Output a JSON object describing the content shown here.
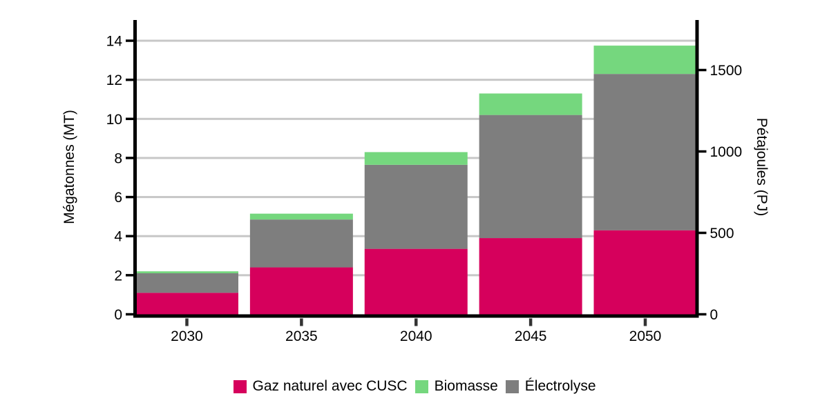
{
  "chart_data": {
    "type": "bar",
    "stacked": true,
    "title": "",
    "categories": [
      "2030",
      "2035",
      "2040",
      "2045",
      "2050"
    ],
    "series": [
      {
        "name": "Gaz naturel avec CUSC",
        "color": "#D6005C",
        "values": [
          1.1,
          2.4,
          3.35,
          3.9,
          4.3
        ]
      },
      {
        "name": "Biomasse",
        "color": "#75D77E",
        "values": [
          0.1,
          0.3,
          0.65,
          1.1,
          1.45
        ]
      },
      {
        "name": "Électrolyse",
        "color": "#7E7E7E",
        "values": [
          1.0,
          2.45,
          4.3,
          6.3,
          8.0
        ]
      }
    ],
    "stack_order_bottom_to_top": [
      "Gaz naturel avec CUSC",
      "Électrolyse",
      "Biomasse"
    ],
    "totals_mt": [
      2.2,
      5.15,
      8.3,
      11.3,
      13.75
    ],
    "y_left": {
      "label": "Mégatonnes (MT)",
      "ticks": [
        0,
        2,
        4,
        6,
        8,
        10,
        12,
        14
      ],
      "range": [
        0,
        15.06
      ]
    },
    "y_right": {
      "label": "Pétajoules (PJ)",
      "ticks": [
        0,
        500,
        1000,
        1500
      ],
      "range": [
        0,
        1807
      ],
      "pj_per_mt": 120
    },
    "x_label": "",
    "grid": true,
    "gridline_color": "#C7C7C7",
    "axis_color": "#000000",
    "x_tick_color": "#333333",
    "legend_position": "bottom-center"
  }
}
